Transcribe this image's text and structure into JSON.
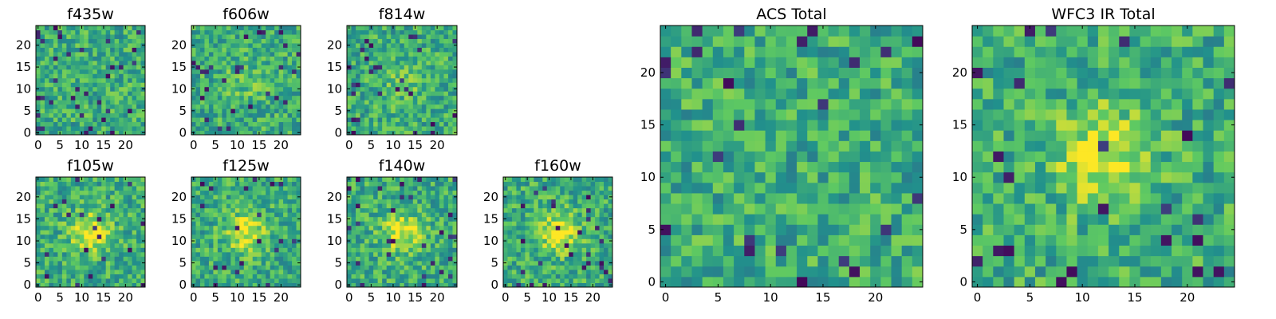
{
  "figure": {
    "background": "#ffffff",
    "colormap": "viridis",
    "colormap_stops": [
      "#440154",
      "#3b528b",
      "#21918c",
      "#5ec962",
      "#fde725"
    ]
  },
  "chart_data": [
    {
      "type": "heatmap",
      "title": "f435w",
      "grid": [
        25,
        25
      ],
      "xlim": [
        -0.5,
        24.5
      ],
      "ylim": [
        -0.5,
        24.5
      ],
      "xticks": [
        0,
        5,
        10,
        15,
        20
      ],
      "yticks": [
        0,
        5,
        10,
        15,
        20
      ],
      "central_source": "none",
      "dark_fraction": 0.05,
      "seed": 11
    },
    {
      "type": "heatmap",
      "title": "f606w",
      "grid": [
        25,
        25
      ],
      "xlim": [
        -0.5,
        24.5
      ],
      "ylim": [
        -0.5,
        24.5
      ],
      "xticks": [
        0,
        5,
        10,
        15,
        20
      ],
      "yticks": [
        0,
        5,
        10,
        15,
        20
      ],
      "central_source": "faint",
      "dark_fraction": 0.04,
      "seed": 23
    },
    {
      "type": "heatmap",
      "title": "f814w",
      "grid": [
        25,
        25
      ],
      "xlim": [
        -0.5,
        24.5
      ],
      "ylim": [
        -0.5,
        24.5
      ],
      "xticks": [
        0,
        5,
        10,
        15,
        20
      ],
      "yticks": [
        0,
        5,
        10,
        15,
        20
      ],
      "central_source": "faint",
      "dark_fraction": 0.05,
      "seed": 37
    },
    {
      "type": "heatmap",
      "title": "f105w",
      "grid": [
        25,
        25
      ],
      "xlim": [
        -0.5,
        24.5
      ],
      "ylim": [
        -0.5,
        24.5
      ],
      "xticks": [
        0,
        5,
        10,
        15,
        20
      ],
      "yticks": [
        0,
        5,
        10,
        15,
        20
      ],
      "central_source": "bright",
      "dark_fraction": 0.03,
      "seed": 41
    },
    {
      "type": "heatmap",
      "title": "f125w",
      "grid": [
        25,
        25
      ],
      "xlim": [
        -0.5,
        24.5
      ],
      "ylim": [
        -0.5,
        24.5
      ],
      "xticks": [
        0,
        5,
        10,
        15,
        20
      ],
      "yticks": [
        0,
        5,
        10,
        15,
        20
      ],
      "central_source": "bright",
      "dark_fraction": 0.04,
      "seed": 53
    },
    {
      "type": "heatmap",
      "title": "f140w",
      "grid": [
        25,
        25
      ],
      "xlim": [
        -0.5,
        24.5
      ],
      "ylim": [
        -0.5,
        24.5
      ],
      "xticks": [
        0,
        5,
        10,
        15,
        20
      ],
      "yticks": [
        0,
        5,
        10,
        15,
        20
      ],
      "central_source": "bright",
      "dark_fraction": 0.04,
      "seed": 67
    },
    {
      "type": "heatmap",
      "title": "f160w",
      "grid": [
        25,
        25
      ],
      "xlim": [
        -0.5,
        24.5
      ],
      "ylim": [
        -0.5,
        24.5
      ],
      "xticks": [
        0,
        5,
        10,
        15,
        20
      ],
      "yticks": [
        0,
        5,
        10,
        15,
        20
      ],
      "central_source": "bright",
      "dark_fraction": 0.05,
      "seed": 79
    },
    {
      "type": "heatmap",
      "title": "ACS Total",
      "grid": [
        25,
        25
      ],
      "xlim": [
        -0.5,
        24.5
      ],
      "ylim": [
        -0.5,
        24.5
      ],
      "xticks": [
        0,
        5,
        10,
        15,
        20
      ],
      "yticks": [
        0,
        5,
        10,
        15,
        20
      ],
      "central_source": "none",
      "dark_fraction": 0.04,
      "seed": 97
    },
    {
      "type": "heatmap",
      "title": "WFC3 IR Total",
      "grid": [
        25,
        25
      ],
      "xlim": [
        -0.5,
        24.5
      ],
      "ylim": [
        -0.5,
        24.5
      ],
      "xticks": [
        0,
        5,
        10,
        15,
        20
      ],
      "yticks": [
        0,
        5,
        10,
        15,
        20
      ],
      "central_source": "bright",
      "dark_fraction": 0.04,
      "seed": 113
    }
  ]
}
